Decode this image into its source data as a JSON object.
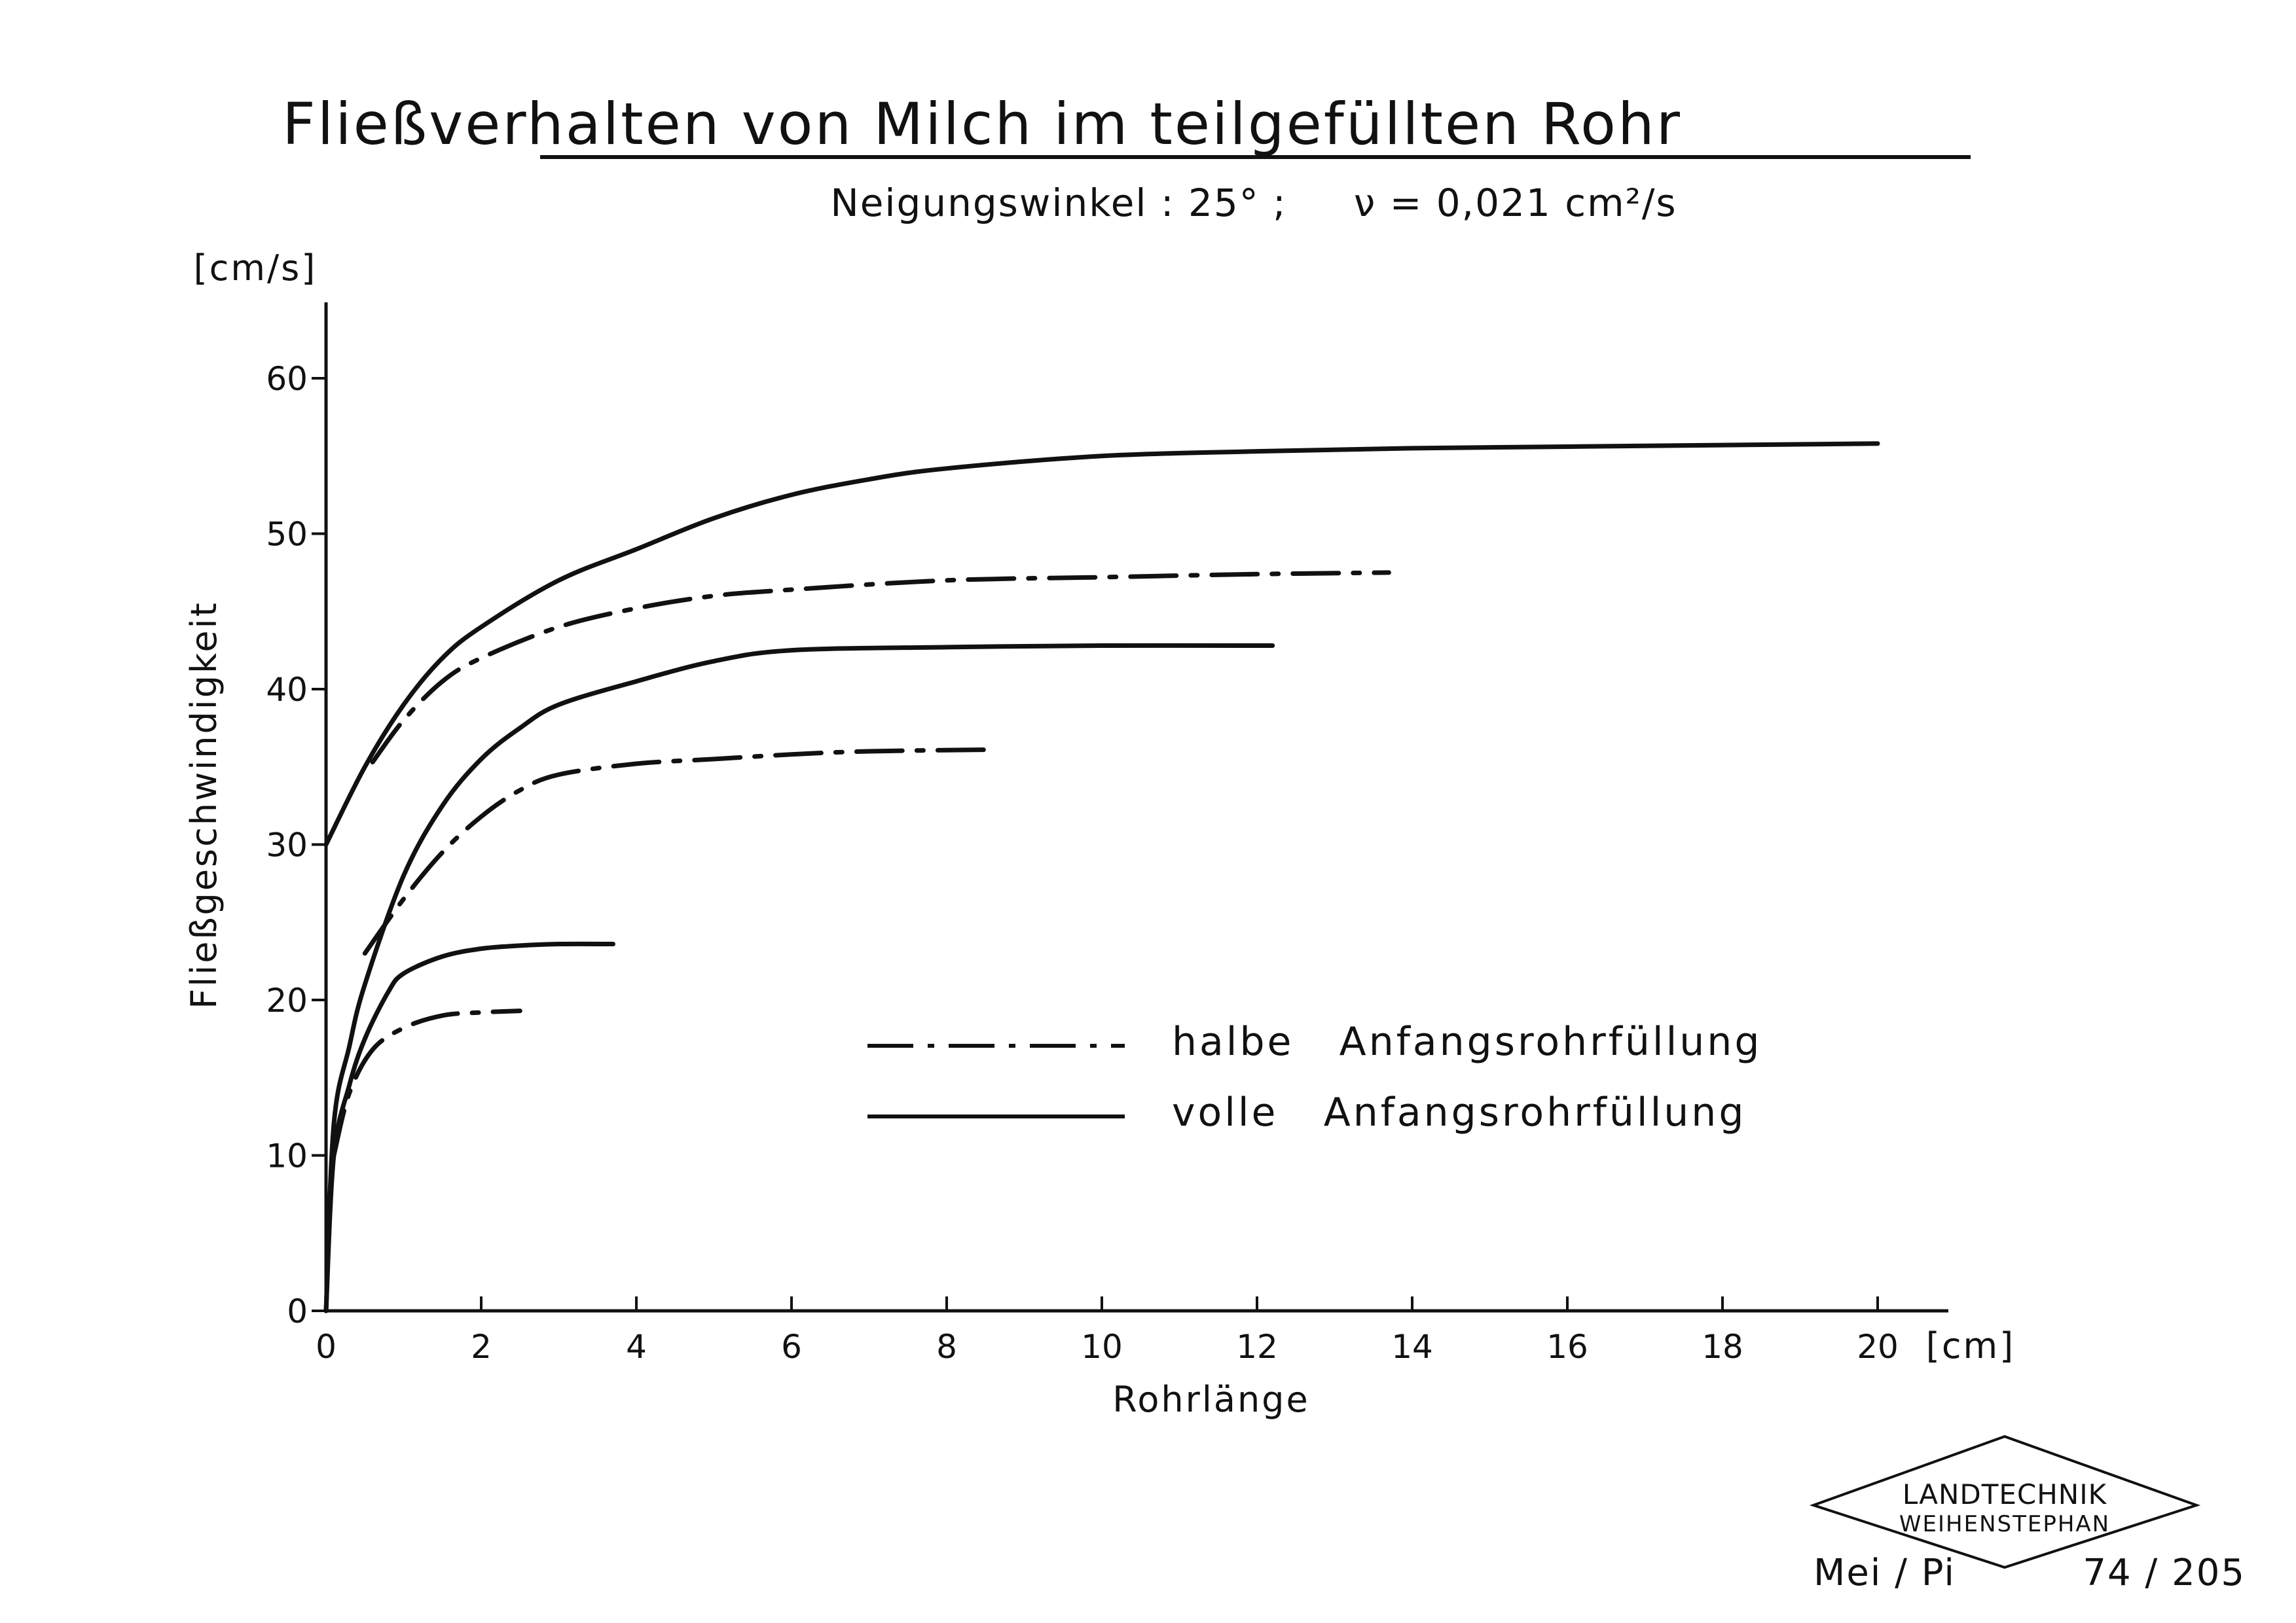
{
  "chart_data": {
    "type": "line",
    "title": "Fließverhalten von Milch im teilgefüllten Rohr",
    "subtitle": "Neigungswinkel : 25° ;     ν = 0,021 cm²/s",
    "xlabel": "Rohrlänge",
    "xunit": "[cm]",
    "ylabel": "Fließgeschwindigkeit",
    "yunit": "[cm/s]",
    "xlim": [
      0,
      21
    ],
    "ylim": [
      0,
      65
    ],
    "xticks": [
      0,
      2,
      4,
      6,
      8,
      10,
      12,
      14,
      16,
      18,
      20
    ],
    "yticks": [
      0,
      10,
      20,
      30,
      40,
      50,
      60
    ],
    "grid": false,
    "legend_position": "center-right",
    "legend": [
      {
        "style": "dashdot",
        "label": "halbe   Anfangsrohrfüllung"
      },
      {
        "style": "solid",
        "label": "volle   Anfangsrohrfüllung"
      }
    ],
    "series": [
      {
        "style": "solid",
        "x": [
          0,
          0.5,
          1,
          1.5,
          2,
          3,
          4,
          5,
          6,
          7,
          8,
          10,
          12,
          14,
          16,
          18,
          20
        ],
        "y": [
          30,
          35,
          39,
          42,
          44,
          47,
          49,
          51,
          52.5,
          53.5,
          54.2,
          55,
          55.3,
          55.5,
          55.6,
          55.7,
          55.8
        ]
      },
      {
        "style": "dashdot",
        "x": [
          0.6,
          1,
          1.5,
          2,
          3,
          4,
          5,
          6,
          8,
          10,
          12,
          13.7
        ],
        "y": [
          35.3,
          38,
          40.5,
          42,
          44,
          45.2,
          46,
          46.4,
          47,
          47.2,
          47.4,
          47.5
        ]
      },
      {
        "style": "solid",
        "x": [
          0,
          0.1,
          0.3,
          0.5,
          1,
          1.5,
          2,
          2.5,
          3,
          4,
          5,
          6,
          8,
          10,
          12.2
        ],
        "y": [
          0,
          12,
          17,
          21,
          28,
          32.5,
          35.5,
          37.5,
          39,
          40.5,
          41.8,
          42.5,
          42.7,
          42.8,
          42.8
        ]
      },
      {
        "style": "dashdot",
        "x": [
          0.5,
          1,
          1.5,
          2,
          2.5,
          3,
          4,
          5,
          6,
          7,
          8.5
        ],
        "y": [
          23,
          26.5,
          29.5,
          31.8,
          33.5,
          34.5,
          35.2,
          35.5,
          35.8,
          36,
          36.1
        ]
      },
      {
        "style": "solid",
        "x": [
          0,
          0.1,
          0.3,
          0.5,
          0.8,
          1,
          1.5,
          2,
          2.5,
          3,
          3.7
        ],
        "y": [
          0,
          10,
          14.5,
          17.5,
          20.5,
          21.7,
          22.8,
          23.3,
          23.5,
          23.6,
          23.6
        ]
      },
      {
        "style": "dashdot",
        "x": [
          0.1,
          0.3,
          0.6,
          1,
          1.5,
          2,
          2.5
        ],
        "y": [
          10,
          14,
          16.8,
          18.2,
          19,
          19.2,
          19.3
        ]
      }
    ]
  },
  "footer": {
    "logo_line1": "LANDTECHNIK",
    "logo_line2": "WEIHENSTEPHAN",
    "author": "Mei / Pi",
    "number": "74 / 205"
  }
}
